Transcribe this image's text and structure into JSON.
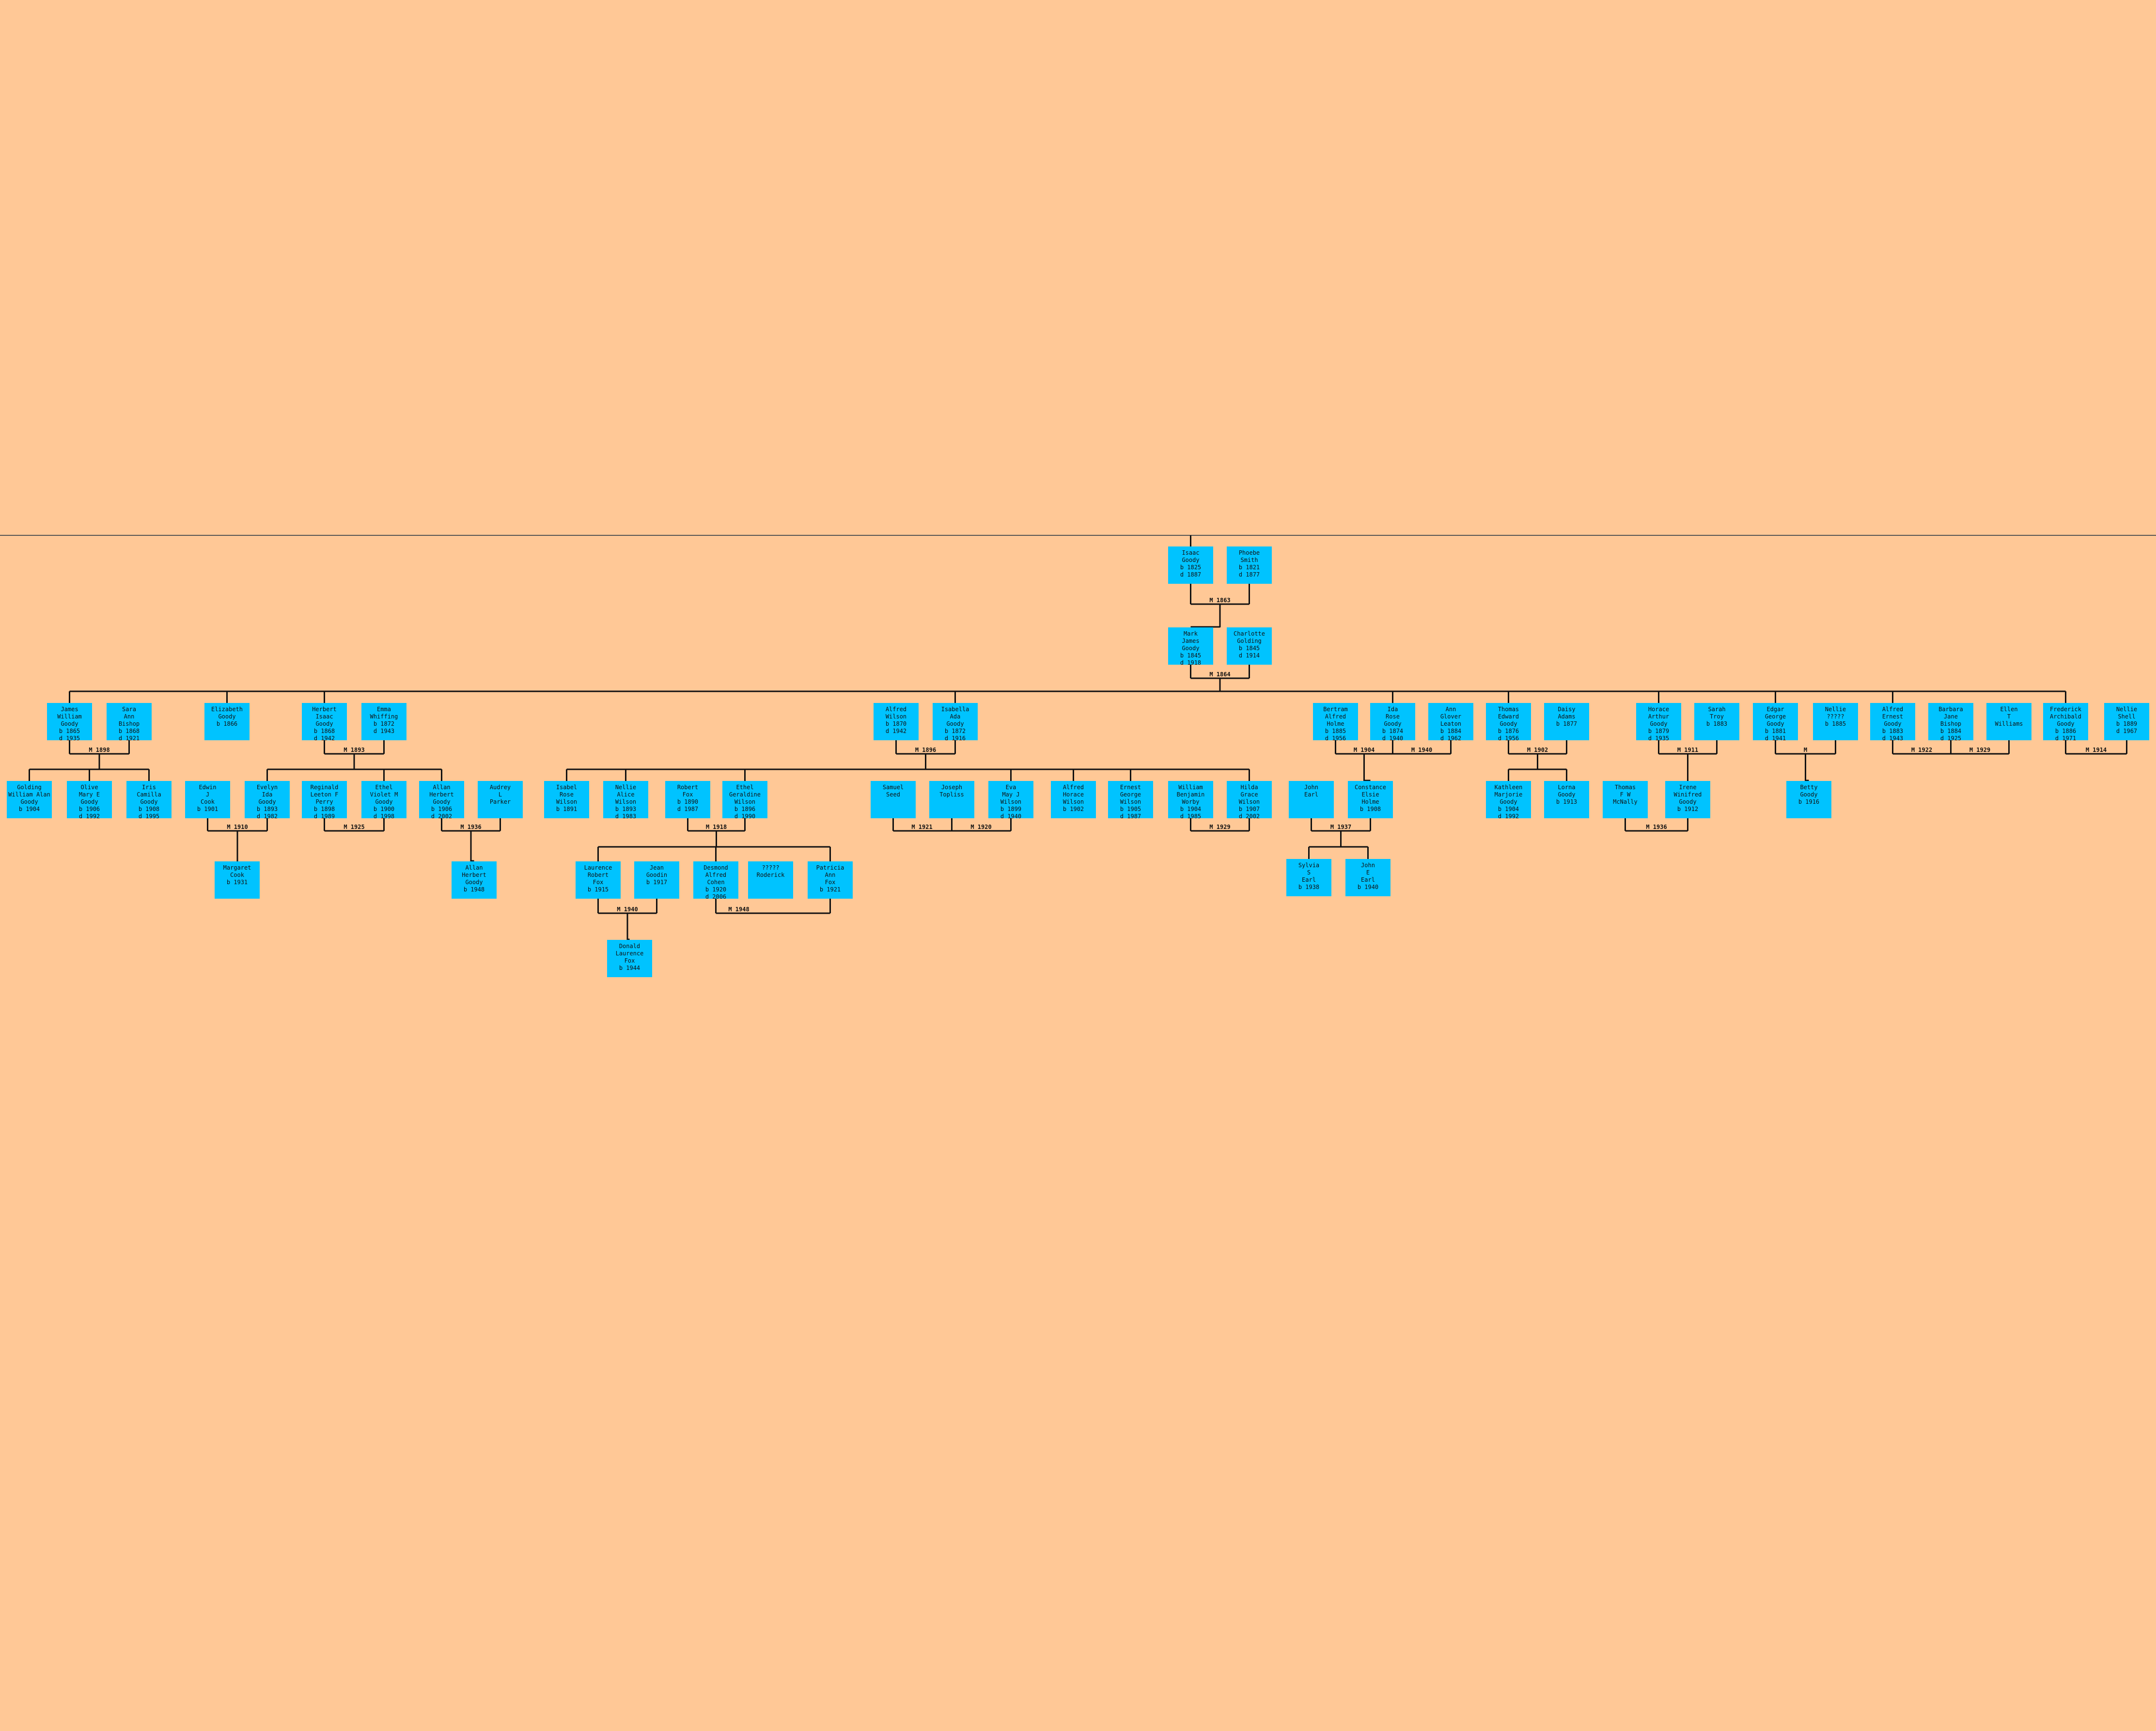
{
  "colors": {
    "background": "#ffc896",
    "person_box": "#00c3ff",
    "connector": "#111111"
  },
  "people": [
    {
      "id": "isaac",
      "text": "Isaac\nGoody\nb 1825\nd 1887"
    },
    {
      "id": "phoebe",
      "text": "Phoebe\nSmith\nb 1821\nd 1877"
    },
    {
      "id": "mark",
      "text": "Mark\nJames\nGoody\nb 1845\nd 1918"
    },
    {
      "id": "charlotte",
      "text": "Charlotte\nGolding\nb 1845\nd 1914"
    },
    {
      "id": "jameswm",
      "text": "James\nWilliam\nGoody\nb 1865\nd 1935"
    },
    {
      "id": "sara",
      "text": "Sara\nAnn\nBishop\nb 1868\nd 1921"
    },
    {
      "id": "elizabeth",
      "text": "Elizabeth\nGoody\nb 1866"
    },
    {
      "id": "herbert",
      "text": "Herbert\nIsaac\nGoody\nb 1868\nd 1942"
    },
    {
      "id": "emmaw",
      "text": "Emma\nWhiffing\nb 1872\nd 1943"
    },
    {
      "id": "alfredw",
      "text": "Alfred\nWilson\nb 1870\nd 1942"
    },
    {
      "id": "isabella",
      "text": "Isabella\nAda\nGoody\nb 1872\nd 1916"
    },
    {
      "id": "bertram",
      "text": "Bertram\nAlfred\nHolme\nb 1885\nd 1956"
    },
    {
      "id": "ida",
      "text": "Ida\nRose\nGoody\nb 1874\nd 1940"
    },
    {
      "id": "ann",
      "text": "Ann\nGlover\nLeaton\nb 1884\nd 1962"
    },
    {
      "id": "thomas",
      "text": "Thomas\nEdward\nGoody\nb 1876\nd 1956"
    },
    {
      "id": "daisy",
      "text": "Daisy\nAdams\nb 1877"
    },
    {
      "id": "horace",
      "text": "Horace\nArthur\nGoody\nb 1879\nd 1935"
    },
    {
      "id": "sarahtroy",
      "text": "Sarah\nTroy\nb 1883"
    },
    {
      "id": "edgar",
      "text": "Edgar\nGeorge\nGoody\nb 1881\nd 1941"
    },
    {
      "id": "nellie1",
      "text": "Nellie\n?????\nb 1885"
    },
    {
      "id": "alfrede",
      "text": "Alfred\nErnest\nGoody\nb 1883\nd 1943"
    },
    {
      "id": "barbara",
      "text": "Barbara\nJane\nBishop\nb 1884\nd 1925"
    },
    {
      "id": "ellen",
      "text": "Ellen\nT\nWilliams"
    },
    {
      "id": "frederick",
      "text": "Frederick\nArchibald\nGoody\nb 1886\nd 1971"
    },
    {
      "id": "nellie2",
      "text": "Nellie\nShell\nb 1889\nd 1967"
    },
    {
      "id": "golding",
      "text": "Golding\nWilliam Alan\nGoody\nb 1904"
    },
    {
      "id": "olive",
      "text": "Olive\nMary E\nGoody\nb 1906\nd 1992"
    },
    {
      "id": "iris",
      "text": "Iris\nCamilla\nGoody\nb 1908\nd 1995"
    },
    {
      "id": "edwin",
      "text": "Edwin\nJ\nCook\nb 1901"
    },
    {
      "id": "evelyn",
      "text": "Evelyn\nIda\nGoody\nb 1893\nd 1982"
    },
    {
      "id": "reginald",
      "text": "Reginald\nLeeton F\nPerry\nb 1898\nd 1989"
    },
    {
      "id": "ethelv",
      "text": "Ethel\nViolet M\nGoody\nb 1900\nd 1998"
    },
    {
      "id": "allan",
      "text": "Allan\nHerbert\nGoody\nb 1906\nd 2002"
    },
    {
      "id": "audrey",
      "text": "Audrey\nL\nParker"
    },
    {
      "id": "margaret",
      "text": "Margaret\nCook\nb 1931"
    },
    {
      "id": "allan2",
      "text": "Allan\nHerbert\nGoody\nb 1948"
    },
    {
      "id": "isabel",
      "text": "Isabel\nRose\nWilson\nb 1891"
    },
    {
      "id": "nellie3",
      "text": "Nellie\nAlice\nWilson\nb 1893\nd 1983"
    },
    {
      "id": "robertfox",
      "text": "Robert\nFox\nb 1890\nd 1987"
    },
    {
      "id": "ethelg",
      "text": "Ethel\nGeraldine\nWilson\nb 1896\nd 1990"
    },
    {
      "id": "samuel",
      "text": "Samuel\nSeed"
    },
    {
      "id": "joseph",
      "text": "Joseph\nTopliss"
    },
    {
      "id": "eva",
      "text": "Eva\nMay J\nWilson\nb 1899\nd 1940"
    },
    {
      "id": "alfredh",
      "text": "Alfred\nHorace\nWilson\nb 1902"
    },
    {
      "id": "ernest",
      "text": "Ernest\nGeorge\nWilson\nb 1905\nd 1987"
    },
    {
      "id": "william",
      "text": "William\nBenjamin\nWorby\nb 1904\nd 1985"
    },
    {
      "id": "hilda",
      "text": "Hilda\nGrace\nWilson\nb 1907\nd 2002"
    },
    {
      "id": "laurence",
      "text": "Laurence\nRobert\nFox\nb 1915"
    },
    {
      "id": "jean",
      "text": "Jean\nGoodin\nb 1917"
    },
    {
      "id": "desmond",
      "text": "Desmond\nAlfred\nCohen\nb 1920\nd 2006"
    },
    {
      "id": "unknown",
      "text": "?????\nRoderick"
    },
    {
      "id": "patricia",
      "text": "Patricia\nAnn\nFox\nb 1921"
    },
    {
      "id": "donald",
      "text": "Donald\nLaurence\nFox\nb 1944"
    },
    {
      "id": "johnearl",
      "text": "John\nEarl"
    },
    {
      "id": "constance",
      "text": "Constance\nElsie\nHolme\nb 1908"
    },
    {
      "id": "sylvia",
      "text": "Sylvia\nS\nEarl\nb 1938"
    },
    {
      "id": "johnjr",
      "text": "John\nE\nEarl\nb 1940"
    },
    {
      "id": "kathleen",
      "text": "Kathleen\nMarjorie\nGoody\nb 1904\nd 1992"
    },
    {
      "id": "lorna",
      "text": "Lorna\nGoody\nb 1913"
    },
    {
      "id": "thomasmcnally",
      "text": "Thomas\nF W\nMcNally"
    },
    {
      "id": "irene",
      "text": "Irene\nWinifred\nGoody\nb 1912"
    },
    {
      "id": "betty",
      "text": "Betty\nGoody\nb 1916"
    }
  ],
  "marriages": [
    {
      "id": "m1",
      "label": "M 1863"
    },
    {
      "id": "m2",
      "label": "M 1864"
    },
    {
      "id": "m3",
      "label": "M 1898"
    },
    {
      "id": "m4",
      "label": "M 1893"
    },
    {
      "id": "m5",
      "label": "M 1896"
    },
    {
      "id": "m6",
      "label": "M 1904"
    },
    {
      "id": "m7",
      "label": "M 1940"
    },
    {
      "id": "m8",
      "label": "M 1902"
    },
    {
      "id": "m9",
      "label": "M 1911"
    },
    {
      "id": "m10",
      "label": "M"
    },
    {
      "id": "m11",
      "label": "M 1922"
    },
    {
      "id": "m12",
      "label": "M 1929"
    },
    {
      "id": "m13",
      "label": "M 1914"
    },
    {
      "id": "m14",
      "label": "M 1910"
    },
    {
      "id": "m15",
      "label": "M 1925"
    },
    {
      "id": "m16",
      "label": "M 1936"
    },
    {
      "id": "m17",
      "label": "M 1918"
    },
    {
      "id": "m18",
      "label": "M 1921"
    },
    {
      "id": "m19",
      "label": "M 1920"
    },
    {
      "id": "m20",
      "label": "M 1929"
    },
    {
      "id": "m21",
      "label": "M 1937"
    },
    {
      "id": "m22",
      "label": "M 1936"
    },
    {
      "id": "m23",
      "label": "M 1940"
    },
    {
      "id": "m24",
      "label": "M 1948"
    }
  ]
}
